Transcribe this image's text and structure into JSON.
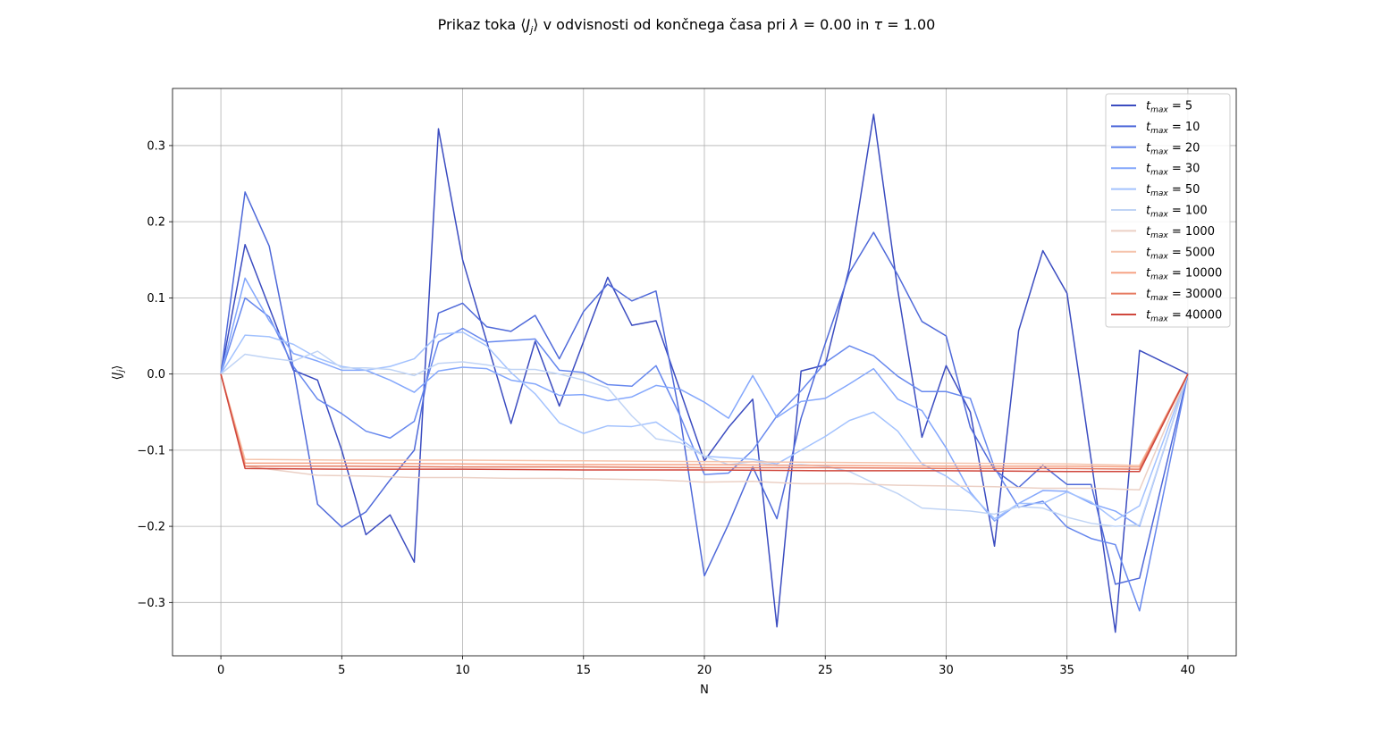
{
  "chart_data": {
    "type": "line",
    "title": "Prikaz toka ⟨J_j⟩ v odvisnosti od končnega časa pri λ = 0.00 in τ = 1.00",
    "title_parts": {
      "prefix": "Prikaz toka ⟨",
      "J": "J",
      "sub_j": "j",
      "mid": "⟩ v odvisnosti od končnega časa pri ",
      "lambda": "λ",
      "lambda_val": " = 0.00 in ",
      "tau": "τ",
      "tau_val": " = 1.00"
    },
    "xlabel": "N",
    "ylabel_parts": {
      "open": "⟨",
      "J": "J",
      "sub": "j",
      "close": "⟩"
    },
    "xlim": [
      -2,
      42
    ],
    "ylim": [
      -0.37,
      0.375
    ],
    "xticks": [
      0,
      5,
      10,
      15,
      20,
      25,
      30,
      35,
      40
    ],
    "yticks": [
      -0.3,
      -0.2,
      -0.1,
      0.0,
      0.1,
      0.2,
      0.3
    ],
    "ytick_labels": [
      "−0.3",
      "−0.2",
      "−0.1",
      "0.0",
      "0.1",
      "0.2",
      "0.3"
    ],
    "grid": true,
    "legend_placement": "top-right",
    "legend_prefix": "t",
    "legend_sub": "max",
    "series": [
      {
        "name": "t_max = 5",
        "label_value": " = 5",
        "color": "#3b4cc0",
        "x": [
          0,
          1,
          3,
          4,
          5,
          6,
          7,
          8,
          9,
          10,
          12,
          13,
          14,
          16,
          17,
          18,
          20,
          21,
          22,
          23,
          24,
          25,
          26,
          27,
          28,
          29,
          30,
          31,
          32,
          33,
          34,
          35,
          36,
          37,
          38,
          40
        ],
        "y": [
          0,
          0.17,
          0.005,
          -0.008,
          -0.1,
          -0.211,
          -0.185,
          -0.247,
          0.322,
          0.15,
          -0.065,
          0.043,
          -0.042,
          0.127,
          0.064,
          0.07,
          -0.114,
          -0.07,
          -0.033,
          -0.332,
          0.004,
          0.012,
          0.14,
          0.341,
          0.11,
          -0.083,
          0.011,
          -0.05,
          -0.226,
          0.057,
          0.162,
          0.106,
          -0.113,
          -0.339,
          0.031,
          0
        ]
      },
      {
        "name": "t_max = 10",
        "label_value": " = 10",
        "color": "#4f69d9",
        "x": [
          0,
          1,
          2,
          3,
          4,
          5,
          6,
          7,
          8,
          9,
          10,
          11,
          12,
          13,
          14,
          15,
          16,
          17,
          18,
          19,
          20,
          21,
          22,
          23,
          24,
          25,
          26,
          27,
          28,
          29,
          30,
          31,
          32,
          33,
          34,
          35,
          36,
          37,
          38,
          40
        ],
        "y": [
          0,
          0.239,
          0.168,
          0.008,
          -0.171,
          -0.201,
          -0.181,
          -0.139,
          -0.1,
          0.08,
          0.093,
          0.062,
          0.056,
          0.077,
          0.02,
          0.082,
          0.118,
          0.096,
          0.109,
          -0.057,
          -0.265,
          -0.197,
          -0.122,
          -0.19,
          -0.058,
          0.04,
          0.133,
          0.186,
          0.13,
          0.069,
          0.05,
          -0.07,
          -0.126,
          -0.149,
          -0.12,
          -0.145,
          -0.145,
          -0.276,
          -0.268,
          0
        ]
      },
      {
        "name": "t_max = 20",
        "label_value": " = 20",
        "color": "#6788ee",
        "x": [
          0,
          1,
          2,
          3,
          4,
          5,
          6,
          7,
          8,
          9,
          10,
          11,
          12,
          13,
          14,
          15,
          16,
          17,
          18,
          19,
          20,
          21,
          22,
          23,
          24,
          25,
          26,
          27,
          28,
          29,
          30,
          31,
          32,
          33,
          34,
          35,
          36,
          37,
          38,
          40
        ],
        "y": [
          0,
          0.1,
          0.075,
          0.01,
          -0.033,
          -0.052,
          -0.075,
          -0.084,
          -0.062,
          0.042,
          0.06,
          0.042,
          0.044,
          0.046,
          0.005,
          0.002,
          -0.014,
          -0.016,
          0.011,
          -0.055,
          -0.132,
          -0.13,
          -0.1,
          -0.055,
          -0.022,
          0.015,
          0.037,
          0.024,
          -0.003,
          -0.023,
          -0.023,
          -0.032,
          -0.123,
          -0.175,
          -0.167,
          -0.201,
          -0.216,
          -0.224,
          -0.311,
          0
        ]
      },
      {
        "name": "t_max = 30",
        "label_value": " = 30",
        "color": "#84a7fc",
        "x": [
          0,
          1,
          2,
          3,
          4,
          5,
          6,
          7,
          8,
          9,
          10,
          11,
          12,
          13,
          14,
          15,
          16,
          17,
          18,
          19,
          20,
          21,
          22,
          23,
          24,
          25,
          26,
          27,
          28,
          29,
          30,
          31,
          32,
          33,
          34,
          35,
          36,
          37,
          38,
          40
        ],
        "y": [
          0,
          0.126,
          0.07,
          0.027,
          0.017,
          0.005,
          0.005,
          -0.008,
          -0.024,
          0.004,
          0.009,
          0.007,
          -0.008,
          -0.013,
          -0.028,
          -0.027,
          -0.035,
          -0.03,
          -0.015,
          -0.02,
          -0.037,
          -0.058,
          -0.002,
          -0.057,
          -0.036,
          -0.032,
          -0.013,
          0.007,
          -0.033,
          -0.048,
          -0.097,
          -0.155,
          -0.193,
          -0.17,
          -0.153,
          -0.154,
          -0.17,
          -0.18,
          -0.2,
          0
        ]
      },
      {
        "name": "t_max = 50",
        "label_value": " = 50",
        "color": "#a3c2fe",
        "x": [
          0,
          1,
          2,
          3,
          4,
          5,
          6,
          7,
          8,
          9,
          10,
          11,
          12,
          13,
          14,
          15,
          16,
          17,
          18,
          19,
          20,
          21,
          22,
          23,
          24,
          25,
          26,
          27,
          28,
          29,
          30,
          31,
          32,
          33,
          34,
          35,
          36,
          37,
          38,
          40
        ],
        "y": [
          0,
          0.051,
          0.049,
          0.039,
          0.021,
          0.01,
          0.005,
          0.01,
          0.02,
          0.052,
          0.055,
          0.037,
          0.002,
          -0.026,
          -0.064,
          -0.078,
          -0.068,
          -0.069,
          -0.063,
          -0.085,
          -0.108,
          -0.11,
          -0.112,
          -0.118,
          -0.1,
          -0.082,
          -0.061,
          -0.05,
          -0.075,
          -0.118,
          -0.134,
          -0.157,
          -0.19,
          -0.17,
          -0.17,
          -0.155,
          -0.168,
          -0.192,
          -0.173,
          0
        ]
      },
      {
        "name": "t_max = 100",
        "label_value": " = 100",
        "color": "#c0d4f5",
        "x": [
          0,
          1,
          2,
          3,
          4,
          5,
          6,
          7,
          8,
          9,
          10,
          11,
          12,
          13,
          14,
          15,
          16,
          17,
          18,
          19,
          20,
          21,
          22,
          23,
          24,
          25,
          26,
          27,
          28,
          29,
          30,
          31,
          32,
          33,
          34,
          35,
          36,
          37,
          38,
          40
        ],
        "y": [
          0,
          0.026,
          0.021,
          0.017,
          0.03,
          0.008,
          0.008,
          0.006,
          -0.002,
          0.014,
          0.016,
          0.012,
          0.006,
          0.006,
          0.0,
          -0.008,
          -0.018,
          -0.055,
          -0.085,
          -0.09,
          -0.108,
          -0.119,
          -0.115,
          -0.12,
          -0.119,
          -0.121,
          -0.128,
          -0.143,
          -0.157,
          -0.176,
          -0.178,
          -0.18,
          -0.184,
          -0.174,
          -0.176,
          -0.188,
          -0.196,
          -0.2,
          -0.198,
          0
        ]
      },
      {
        "name": "t_max = 1000",
        "label_value": " = 1000",
        "color": "#ebd0c5",
        "x": [
          0,
          1,
          2,
          4,
          6,
          8,
          10,
          12,
          14,
          16,
          18,
          20,
          22,
          24,
          26,
          28,
          30,
          32,
          34,
          36,
          38,
          40
        ],
        "y": [
          0,
          -0.121,
          -0.125,
          -0.133,
          -0.134,
          -0.136,
          -0.136,
          -0.137,
          -0.137,
          -0.138,
          -0.139,
          -0.142,
          -0.141,
          -0.144,
          -0.144,
          -0.146,
          -0.147,
          -0.148,
          -0.15,
          -0.15,
          -0.152,
          0
        ]
      },
      {
        "name": "t_max = 5000",
        "label_value": " = 5000",
        "color": "#f5c4ac",
        "x": [
          0,
          1,
          5,
          10,
          15,
          20,
          25,
          30,
          35,
          38,
          40
        ],
        "y": [
          0,
          -0.112,
          -0.113,
          -0.113,
          -0.114,
          -0.115,
          -0.116,
          -0.117,
          -0.118,
          -0.12,
          0
        ]
      },
      {
        "name": "t_max = 10000",
        "label_value": " = 10000",
        "color": "#f6a385",
        "x": [
          0,
          1,
          5,
          10,
          15,
          20,
          25,
          30,
          35,
          38,
          40
        ],
        "y": [
          0,
          -0.117,
          -0.117,
          -0.118,
          -0.119,
          -0.119,
          -0.12,
          -0.121,
          -0.121,
          -0.122,
          0
        ]
      },
      {
        "name": "t_max = 30000",
        "label_value": " = 30000",
        "color": "#e67c63",
        "x": [
          0,
          1,
          5,
          10,
          15,
          20,
          25,
          30,
          35,
          38,
          40
        ],
        "y": [
          0,
          -0.121,
          -0.121,
          -0.122,
          -0.122,
          -0.123,
          -0.123,
          -0.124,
          -0.124,
          -0.125,
          0
        ]
      },
      {
        "name": "t_max = 40000",
        "label_value": " = 40000",
        "color": "#d0473d",
        "x": [
          0,
          1,
          5,
          10,
          15,
          20,
          25,
          30,
          35,
          38,
          40
        ],
        "y": [
          0,
          -0.124,
          -0.125,
          -0.125,
          -0.126,
          -0.126,
          -0.127,
          -0.127,
          -0.128,
          -0.128,
          0
        ]
      }
    ]
  }
}
